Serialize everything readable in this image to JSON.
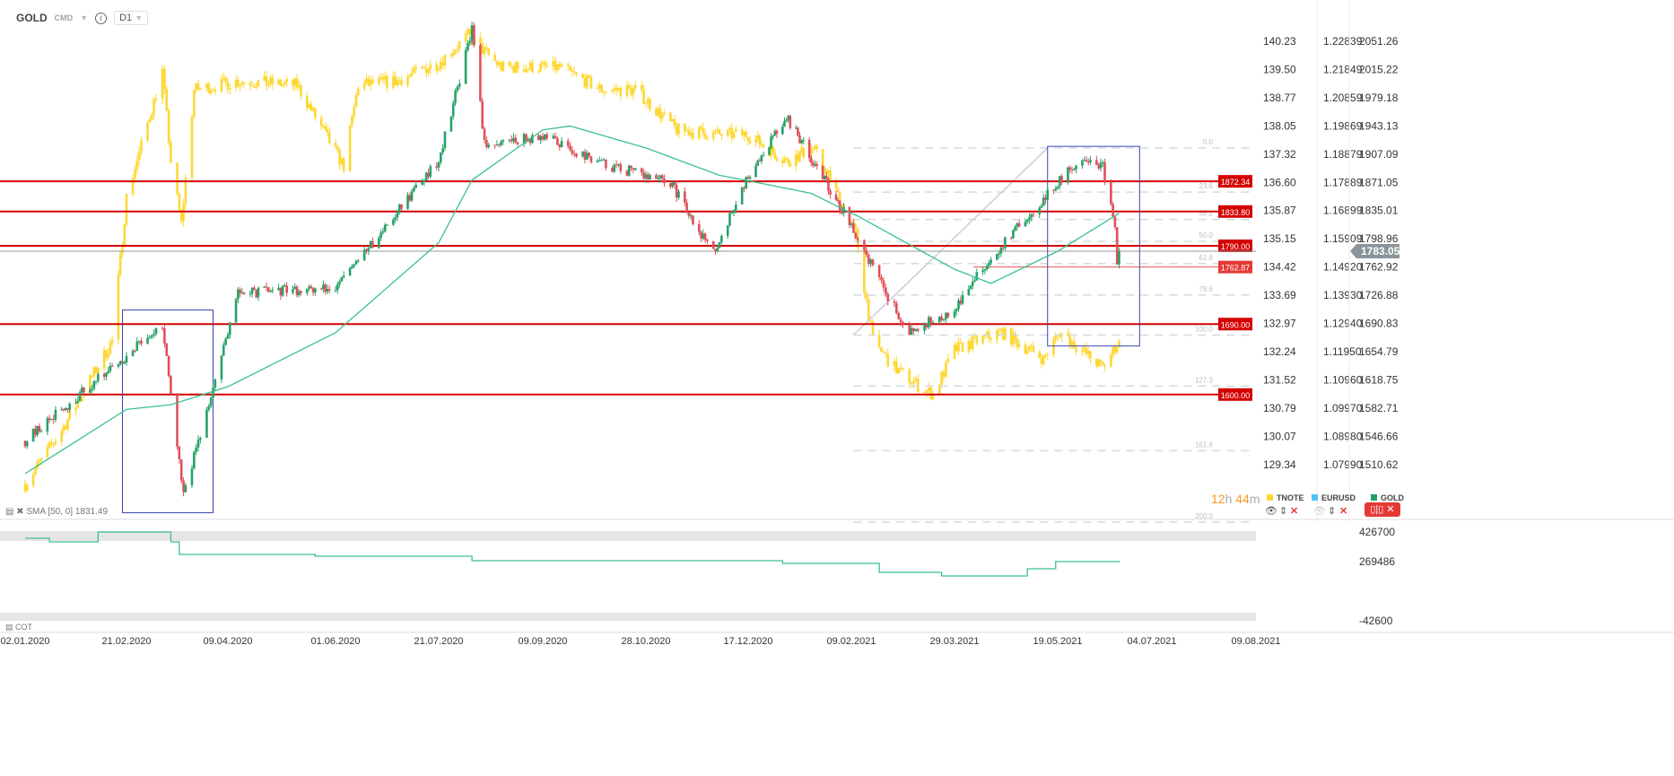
{
  "header": {
    "symbol": "GOLD",
    "type": "CMD",
    "timeframe": "D1"
  },
  "sma_label": "SMA [50, 0] 1831.49",
  "cot_label": "COT",
  "timer": {
    "h": "12",
    "hu": "h",
    "m": "44",
    "mu": "m"
  },
  "legend": [
    {
      "name": "TNOTE",
      "color": "#fdd835"
    },
    {
      "name": "EURUSD",
      "color": "#4fc3f7"
    },
    {
      "name": "GOLD",
      "color": "#26a269"
    }
  ],
  "colors": {
    "up": "#26a269",
    "down": "#e0505a",
    "tnote": "#fdd835",
    "sma": "#3cc08f",
    "level": "#d40000",
    "box": "#3a44b0"
  },
  "chart_data": {
    "type": "candlestick",
    "x_ticks": [
      "02.01.2020",
      "21.02.2020",
      "09.04.2020",
      "01.06.2020",
      "21.07.2020",
      "09.09.2020",
      "28.10.2020",
      "17.12.2020",
      "09.02.2021",
      "29.03.2021",
      "19.05.2021",
      "04.07.2021",
      "09.08.2021"
    ],
    "axes": {
      "tnote": [
        "140.23",
        "139.50",
        "138.77",
        "138.05",
        "137.32",
        "136.60",
        "135.87",
        "135.15",
        "134.42",
        "133.69",
        "132.97",
        "132.24",
        "131.52",
        "130.79",
        "130.07",
        "129.34"
      ],
      "eurusd": [
        "1.22839",
        "1.21849",
        "1.20859",
        "1.19869",
        "1.18879",
        "1.17889",
        "1.16899",
        "1.15909",
        "1.14920",
        "1.13930",
        "1.12940",
        "1.11950",
        "1.10960",
        "1.09970",
        "1.08980",
        "1.07990"
      ],
      "gold": [
        "2051.26",
        "2015.22",
        "1979.18",
        "1943.13",
        "1907.09",
        "1871.05",
        "1835.01",
        "1798.96",
        "1762.92",
        "1726.88",
        "1690.83",
        "1654.79",
        "1618.75",
        "1582.71",
        "1546.66",
        "1510.62"
      ],
      "cot": [
        "426700",
        "269486",
        "-42600"
      ]
    },
    "gold_close": [
      [
        "2020-01-02",
        1541
      ],
      [
        "2020-02-21",
        1650
      ],
      [
        "2020-03-09",
        1690
      ],
      [
        "2020-03-19",
        1470
      ],
      [
        "2020-04-14",
        1730
      ],
      [
        "2020-06-01",
        1735
      ],
      [
        "2020-07-21",
        1900
      ],
      [
        "2020-08-06",
        2065
      ],
      [
        "2020-08-12",
        1920
      ],
      [
        "2020-09-09",
        1930
      ],
      [
        "2020-10-07",
        1895
      ],
      [
        "2020-11-09",
        1870
      ],
      [
        "2020-11-30",
        1780
      ],
      [
        "2020-12-17",
        1880
      ],
      [
        "2021-01-06",
        1955
      ],
      [
        "2021-02-09",
        1817
      ],
      [
        "2021-02-26",
        1725
      ],
      [
        "2021-03-08",
        1680
      ],
      [
        "2021-03-29",
        1710
      ],
      [
        "2021-04-16",
        1775
      ],
      [
        "2021-05-19",
        1870
      ],
      [
        "2021-06-01",
        1905
      ],
      [
        "2021-06-10",
        1890
      ],
      [
        "2021-06-16",
        1810
      ],
      [
        "2021-06-17",
        1765
      ],
      [
        "2021-06-18",
        1783.05
      ]
    ],
    "tnote_close": [
      [
        "2020-01-02",
        128.83
      ],
      [
        "2020-01-20",
        130.22
      ],
      [
        "2020-02-14",
        132.52
      ],
      [
        "2020-02-21",
        136.22
      ],
      [
        "2020-03-09",
        139.45
      ],
      [
        "2020-03-13",
        137.14
      ],
      [
        "2020-03-18",
        135.52
      ],
      [
        "2020-03-24",
        138.98
      ],
      [
        "2020-04-14",
        139.21
      ],
      [
        "2020-05-13",
        139.1
      ],
      [
        "2020-06-05",
        137.02
      ],
      [
        "2020-06-12",
        139.1
      ],
      [
        "2020-07-01",
        139.21
      ],
      [
        "2020-07-21",
        139.68
      ],
      [
        "2020-08-04",
        140.37
      ],
      [
        "2020-08-20",
        139.56
      ],
      [
        "2020-09-09",
        139.56
      ],
      [
        "2020-09-17",
        139.56
      ],
      [
        "2020-10-07",
        138.98
      ],
      [
        "2020-10-23",
        138.98
      ],
      [
        "2020-11-12",
        137.95
      ],
      [
        "2020-12-01",
        137.83
      ],
      [
        "2020-12-17",
        137.83
      ],
      [
        "2021-01-06",
        137.14
      ],
      [
        "2021-01-20",
        137.48
      ],
      [
        "2021-01-29",
        136.68
      ],
      [
        "2021-02-11",
        135.29
      ],
      [
        "2021-02-19",
        132.52
      ],
      [
        "2021-03-01",
        131.83
      ],
      [
        "2021-03-12",
        131.37
      ],
      [
        "2021-03-19",
        131.14
      ],
      [
        "2021-03-29",
        132.29
      ],
      [
        "2021-04-09",
        132.52
      ],
      [
        "2021-04-21",
        132.75
      ],
      [
        "2021-05-05",
        132.29
      ],
      [
        "2021-05-12",
        132.06
      ],
      [
        "2021-05-20",
        132.75
      ],
      [
        "2021-06-10",
        131.83
      ],
      [
        "2021-06-18",
        132.52
      ]
    ],
    "sma50": [
      [
        "2020-01-02",
        1499
      ],
      [
        "2020-02-21",
        1581
      ],
      [
        "2020-03-13",
        1587
      ],
      [
        "2020-04-09",
        1610
      ],
      [
        "2020-06-01",
        1679
      ],
      [
        "2020-07-21",
        1794
      ],
      [
        "2020-08-06",
        1874
      ],
      [
        "2020-09-09",
        1938
      ],
      [
        "2020-09-22",
        1943
      ],
      [
        "2020-10-28",
        1915
      ],
      [
        "2020-12-03",
        1880
      ],
      [
        "2021-01-19",
        1857
      ],
      [
        "2021-02-12",
        1828
      ],
      [
        "2021-03-29",
        1760
      ],
      [
        "2021-04-16",
        1742
      ],
      [
        "2021-05-19",
        1783
      ],
      [
        "2021-06-18",
        1831.49
      ]
    ],
    "cot": [
      [
        "2020-01-02",
        393352
      ],
      [
        "2020-01-14",
        374296
      ],
      [
        "2020-02-07",
        426700
      ],
      [
        "2020-02-24",
        426700
      ],
      [
        "2020-03-13",
        374296
      ],
      [
        "2020-03-17",
        307600
      ],
      [
        "2020-05-22",
        298072
      ],
      [
        "2020-08-06",
        274250
      ],
      [
        "2020-10-19",
        274250
      ],
      [
        "2021-01-04",
        259958
      ],
      [
        "2021-02-22",
        212318
      ],
      [
        "2021-03-23",
        193262
      ],
      [
        "2021-05-04",
        231374
      ],
      [
        "2021-05-18",
        269486
      ],
      [
        "2021-06-18",
        264722
      ]
    ],
    "levels": [
      {
        "label": "1872.34",
        "price": 1872.34
      },
      {
        "label": "1833.80",
        "price": 1833.8
      },
      {
        "label": "1790.00",
        "price": 1790
      },
      {
        "label": "1762.87",
        "price": 1762.87
      },
      {
        "label": "1690.00",
        "price": 1690
      },
      {
        "label": "1600.00",
        "price": 1600
      }
    ],
    "current_price": "1783.05",
    "fib": {
      "from_date": "2021-02-10",
      "high": 1915,
      "low": 1676,
      "levels": [
        "0.0",
        "23.6",
        "38.2",
        "50.0",
        "61.8",
        "78.6",
        "100.0",
        "127.3",
        "161.8",
        "200.0"
      ]
    },
    "boxes": [
      {
        "from": "2020-02-19",
        "to": "2020-04-02",
        "top": 1708,
        "bottom": 1449
      },
      {
        "from": "2021-05-14",
        "to": "2021-06-28",
        "top": 1917,
        "bottom": 1662
      }
    ]
  }
}
